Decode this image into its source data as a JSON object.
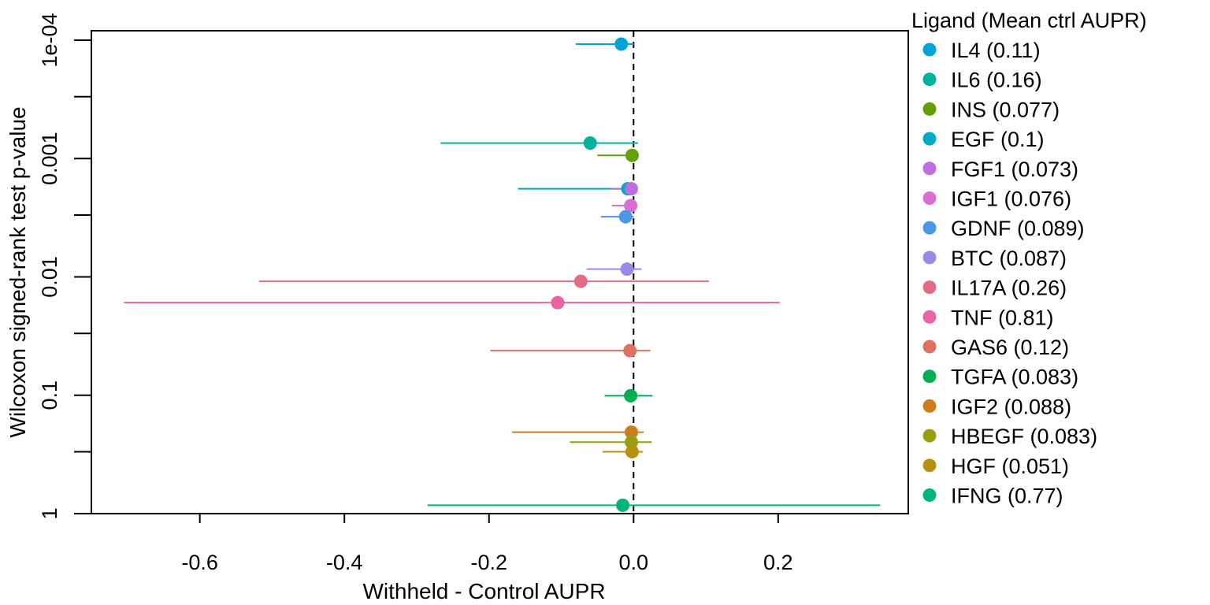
{
  "chart_data": {
    "type": "scatter",
    "xlabel": "Withheld - Control AUPR",
    "ylabel": "Wilcoxon signed-rank test p-value",
    "xlim": [
      -0.75,
      0.38
    ],
    "ylim_log10": [
      0.0,
      -4.08
    ],
    "y_scale": "log10, reversed (smaller p-values at top)",
    "x_ticks": [
      -0.6,
      -0.4,
      -0.2,
      0.0,
      0.2
    ],
    "x_tick_labels": [
      "-0.6",
      "-0.4",
      "-0.2",
      "0.0",
      "0.2"
    ],
    "y_ticks": [
      1,
      0.1,
      0.01,
      0.001,
      0.0001
    ],
    "y_tick_labels": [
      "1",
      "0.1",
      "0.01",
      "0.001",
      "1e-04"
    ],
    "y_minor_ticks": [
      0.0003,
      0.003,
      0.03,
      0.3
    ],
    "reference_line": {
      "x": 0.0,
      "style": "dashed"
    },
    "grid": false,
    "legend": {
      "title": "Ligand (Mean ctrl AUPR)",
      "position": "right"
    },
    "series": [
      {
        "name": "IL4 (0.11)",
        "color": "#00A5D5",
        "x": -0.017,
        "lo": -0.08,
        "hi": 0.0,
        "p": 0.000108
      },
      {
        "name": "IL6 (0.16)",
        "color": "#00B19A",
        "x": -0.06,
        "lo": -0.267,
        "hi": 0.006,
        "p": 0.00074
      },
      {
        "name": "INS (0.077)",
        "color": "#64A100",
        "x": -0.002,
        "lo": -0.05,
        "hi": 0.0,
        "p": 0.00094
      },
      {
        "name": "EGF (0.1)",
        "color": "#00ABBF",
        "x": -0.008,
        "lo": -0.16,
        "hi": 0.0,
        "p": 0.0018
      },
      {
        "name": "FGF1 (0.073)",
        "color": "#BE6FE2",
        "x": -0.003,
        "lo": -0.03,
        "hi": 0.0,
        "p": 0.0018
      },
      {
        "name": "IGF1 (0.076)",
        "color": "#D96ED4",
        "x": -0.004,
        "lo": -0.03,
        "hi": 0.0,
        "p": 0.0025
      },
      {
        "name": "GDNF (0.089)",
        "color": "#4B97E5",
        "x": -0.011,
        "lo": -0.045,
        "hi": 0.0,
        "p": 0.0031
      },
      {
        "name": "BTC (0.087)",
        "color": "#9A8BE7",
        "x": -0.009,
        "lo": -0.065,
        "hi": 0.011,
        "p": 0.0086
      },
      {
        "name": "IL17A (0.26)",
        "color": "#E16C83",
        "x": -0.073,
        "lo": -0.518,
        "hi": 0.104,
        "p": 0.0109
      },
      {
        "name": "TNF (0.81)",
        "color": "#E963A6",
        "x": -0.105,
        "lo": -0.705,
        "hi": 0.202,
        "p": 0.0165
      },
      {
        "name": "GAS6 (0.12)",
        "color": "#DF7062",
        "x": -0.005,
        "lo": -0.198,
        "hi": 0.023,
        "p": 0.042
      },
      {
        "name": "TGFA (0.083)",
        "color": "#00AF51",
        "x": -0.004,
        "lo": -0.04,
        "hi": 0.026,
        "p": 0.101
      },
      {
        "name": "IGF2 (0.088)",
        "color": "#CC7E1E",
        "x": -0.003,
        "lo": -0.168,
        "hi": 0.014,
        "p": 0.205
      },
      {
        "name": "HBEGF (0.083)",
        "color": "#979F11",
        "x": -0.003,
        "lo": -0.088,
        "hi": 0.025,
        "p": 0.249
      },
      {
        "name": "HGF (0.051)",
        "color": "#B4920F",
        "x": -0.002,
        "lo": -0.043,
        "hi": 0.013,
        "p": 0.3
      },
      {
        "name": "IFNG (0.77)",
        "color": "#00B47E",
        "x": -0.015,
        "lo": -0.285,
        "hi": 0.341,
        "p": 0.85
      }
    ]
  }
}
